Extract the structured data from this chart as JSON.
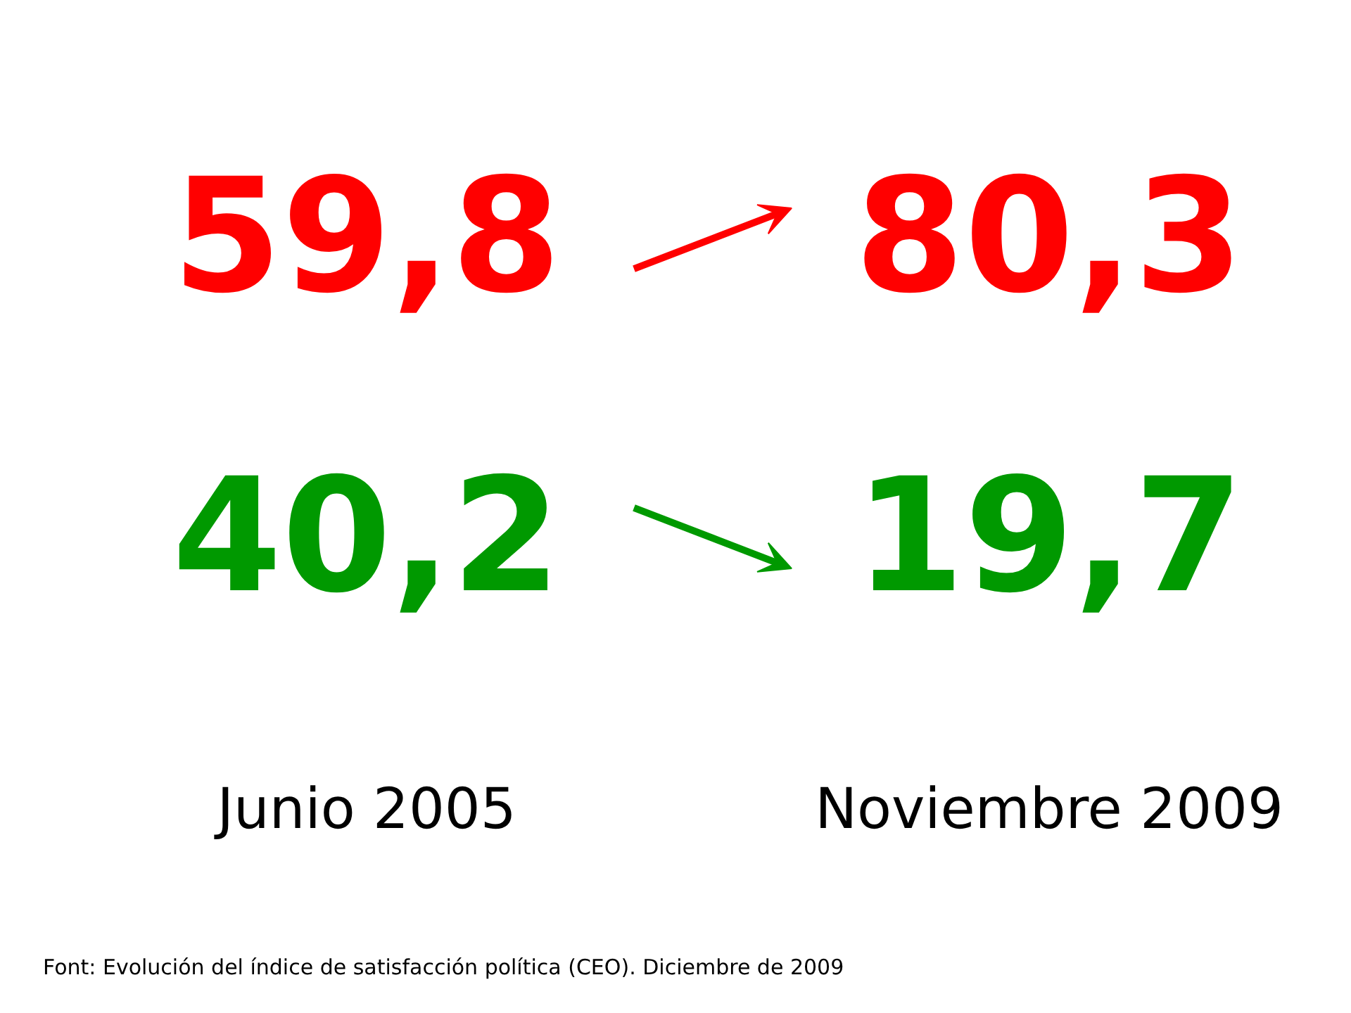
{
  "chart_data": {
    "type": "other",
    "categories": [
      "Junio 2005",
      "Noviembre 2009"
    ],
    "series": [
      {
        "color": "#ff0000",
        "values": [
          59.8,
          80.3
        ],
        "value_labels": [
          "59,8",
          "80,3"
        ]
      },
      {
        "color": "#009900",
        "values": [
          40.2,
          19.7
        ],
        "value_labels": [
          "40,2",
          "19,7"
        ]
      }
    ],
    "annotations": [
      "Font: Evolución del índice de satisfacción política (CEO). Diciembre de 2009"
    ]
  }
}
